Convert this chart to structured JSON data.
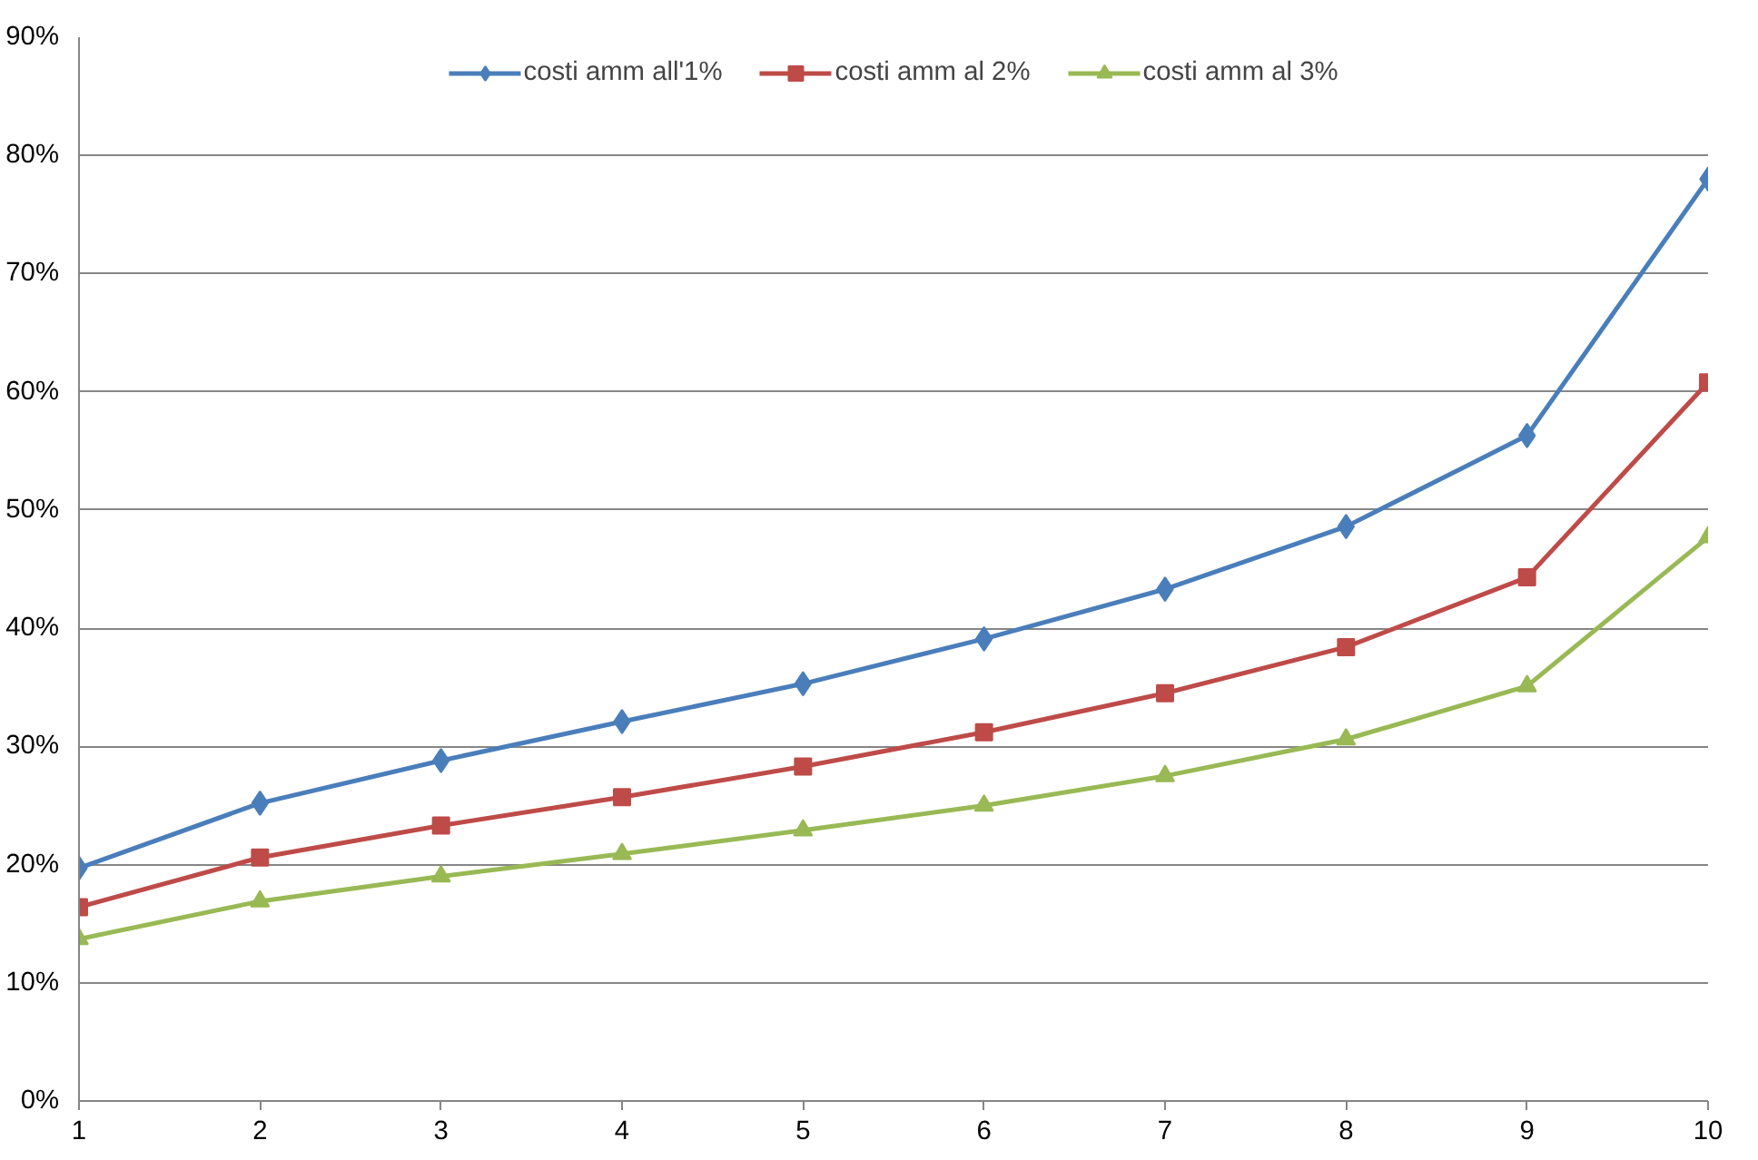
{
  "chart_data": {
    "type": "line",
    "x": [
      1,
      2,
      3,
      4,
      5,
      6,
      7,
      8,
      9,
      10
    ],
    "series": [
      {
        "name": "costi amm all'1%",
        "color": "#4a7ebb",
        "marker": "diamond",
        "values": [
          19.7,
          25.2,
          28.8,
          32.1,
          35.3,
          39.1,
          43.3,
          48.6,
          56.3,
          78.0
        ]
      },
      {
        "name": "costi amm al 2%",
        "color": "#be4b48",
        "marker": "square",
        "values": [
          16.4,
          20.6,
          23.3,
          25.7,
          28.3,
          31.2,
          34.5,
          38.4,
          44.3,
          60.8
        ]
      },
      {
        "name": "costi amm al 3%",
        "color": "#98b954",
        "marker": "triangle",
        "values": [
          13.7,
          16.9,
          19.0,
          20.9,
          22.9,
          25.0,
          27.5,
          30.6,
          35.1,
          47.7
        ]
      }
    ],
    "xlim": [
      1,
      10
    ],
    "xticks": [
      1,
      2,
      3,
      4,
      5,
      6,
      7,
      8,
      9,
      10
    ],
    "ylim": [
      0,
      90
    ],
    "yticks": [
      {
        "value": 0,
        "label": "0%"
      },
      {
        "value": 10,
        "label": "10%"
      },
      {
        "value": 20,
        "label": "20%"
      },
      {
        "value": 30,
        "label": "30%"
      },
      {
        "value": 40,
        "label": "40%"
      },
      {
        "value": 50,
        "label": "50%"
      },
      {
        "value": 60,
        "label": "60%"
      },
      {
        "value": 70,
        "label": "70%"
      },
      {
        "value": 80,
        "label": "80%"
      },
      {
        "value": 90,
        "label": "90%"
      }
    ],
    "grid": "y",
    "legend": "top",
    "line_style": "solid"
  }
}
